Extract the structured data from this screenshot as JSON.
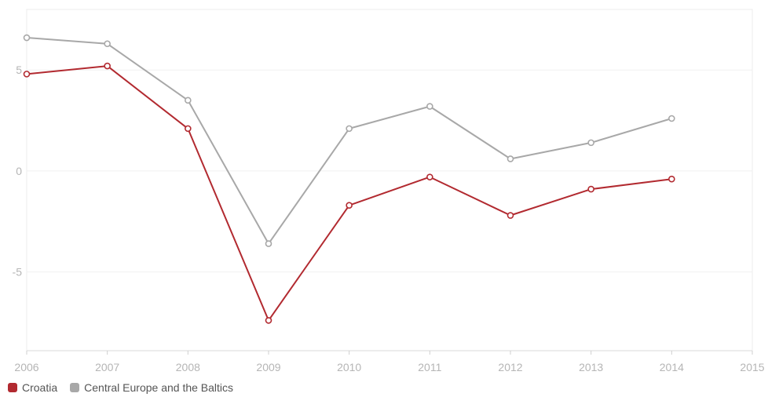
{
  "chart_data": {
    "type": "line",
    "x": [
      2006,
      2007,
      2008,
      2009,
      2010,
      2011,
      2012,
      2013,
      2014
    ],
    "x_ticks": [
      "2006",
      "2007",
      "2008",
      "2009",
      "2010",
      "2011",
      "2012",
      "2013",
      "2014",
      "2015"
    ],
    "y_ticks": [
      "5",
      "0",
      "-5"
    ],
    "xlim": [
      2006,
      2015
    ],
    "ylim": [
      -8.9,
      8.0
    ],
    "grid": true,
    "legend_position": "bottom-left",
    "series": [
      {
        "name": "Croatia",
        "color": "#b22a30",
        "values": [
          4.8,
          5.2,
          2.1,
          -7.4,
          -1.7,
          -0.3,
          -2.2,
          -0.9,
          -0.4
        ]
      },
      {
        "name": "Central Europe and the Baltics",
        "color": "#a8a8a8",
        "values": [
          6.6,
          6.3,
          3.5,
          -3.6,
          2.1,
          3.2,
          0.6,
          1.4,
          2.6
        ]
      }
    ]
  }
}
